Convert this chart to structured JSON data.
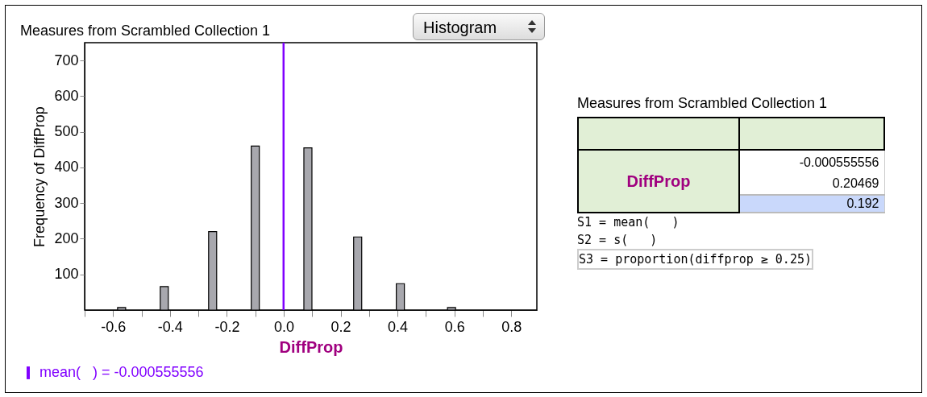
{
  "chart_data": [
    {
      "type": "bar",
      "title": "Measures from Scrambled Collection 1",
      "xlabel": "DiffProp",
      "ylabel": "Frequency of DiffProp",
      "x": [
        -0.57,
        -0.42,
        -0.25,
        -0.1,
        0.085,
        0.26,
        0.41,
        0.59
      ],
      "values": [
        7,
        66,
        220,
        460,
        455,
        205,
        74,
        7
      ],
      "color": "#a8a8ae",
      "xlim": [
        -0.7,
        0.89
      ],
      "ylim": [
        0,
        750
      ],
      "xticks": [
        {
          "value": -0.7,
          "label": null
        },
        -0.6,
        {
          "value": -0.5,
          "label": null
        },
        -0.4,
        {
          "value": -0.3,
          "label": null
        },
        -0.2,
        {
          "value": -0.1,
          "label": null
        },
        {
          "value": 0,
          "label": "0.0"
        },
        {
          "value": 0.1,
          "label": null
        },
        0.2,
        {
          "value": 0.3,
          "label": null
        },
        0.4,
        {
          "value": 0.5,
          "label": null
        },
        0.6,
        {
          "value": 0.7,
          "label": null
        },
        0.8
      ],
      "yticks": [
        100,
        200,
        300,
        400,
        500,
        600,
        700
      ],
      "ref_lines": [
        {
          "axis": "x",
          "value": -0.000555556,
          "label": "mean(   ) = -0.000555556",
          "color": "#8000ff"
        }
      ],
      "legend": "bottom left",
      "grid": false,
      "annotations": [
        "Histogram"
      ]
    },
    {
      "type": "other",
      "title": "Measures from Scrambled Collection 1",
      "annotations": [
        "DiffProp",
        "-0.000555556",
        "0.20469",
        "0.192",
        "S1 = mean(   )",
        "S2 = s(   )",
        "S3 = proportion(diffprop ≥ 0.25)"
      ]
    }
  ]
}
